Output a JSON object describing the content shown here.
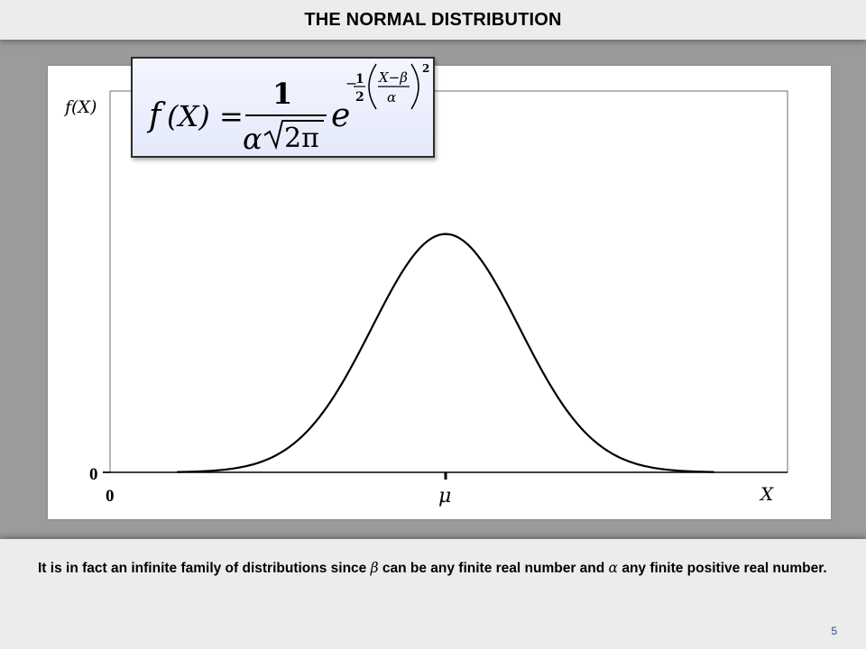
{
  "slide": {
    "title": "THE NORMAL DISTRIBUTION",
    "page_number": "5",
    "caption": {
      "part1": "It is in fact an infinite family of distributions since ",
      "beta": "β",
      "part2": " can be any finite real number and ",
      "alpha": "α",
      "part3": " any finite positive real number."
    },
    "formula": {
      "lhs": "f",
      "lhs_arg": "(X)",
      "equals": "=",
      "numerator": "1",
      "alpha": "α",
      "sqrt_body": "2π",
      "base": "e",
      "exp_sign": "−",
      "exp_half_num": "1",
      "exp_half_den": "2",
      "exp_frac_num": "X−β",
      "exp_frac_den": "α",
      "exp_power": "2"
    }
  },
  "chart_data": {
    "type": "line",
    "xlabel": "X",
    "ylabel": "f(X)",
    "x_ticks": [
      {
        "value": 0,
        "label": "0"
      },
      {
        "value": 1,
        "label": "μ"
      }
    ],
    "y_ticks": [
      {
        "value": 0,
        "label": "0"
      }
    ],
    "xlim": [
      0,
      2.1
    ],
    "ylim": [
      0,
      1.6
    ],
    "series": [
      {
        "curve": "normal-density",
        "mean": 1,
        "sd": 0.22,
        "peak": 1.0,
        "x_range": [
          0.2,
          1.8
        ]
      }
    ],
    "grid": false,
    "legend": "none",
    "line_color": "#000000"
  }
}
